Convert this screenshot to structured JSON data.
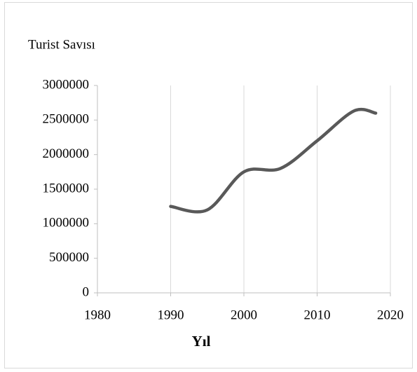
{
  "chart_data": {
    "type": "line",
    "title": "Turist Savısı",
    "x_label": "Yıl",
    "x": [
      1990,
      1995,
      2000,
      2005,
      2010,
      2015,
      2018
    ],
    "series": [
      {
        "name": "Turist Savısı",
        "color": "#595959",
        "values": [
          1250000,
          1200000,
          1750000,
          1800000,
          2200000,
          2630000,
          2600000
        ]
      }
    ],
    "xlim": [
      1980,
      2020
    ],
    "xticks": [
      1980,
      1990,
      2000,
      2010,
      2020
    ],
    "ylim": [
      0,
      3000000
    ],
    "yticks": [
      0,
      500000,
      1000000,
      1500000,
      2000000,
      2500000,
      3000000
    ],
    "grid": "x",
    "smooth": true
  }
}
